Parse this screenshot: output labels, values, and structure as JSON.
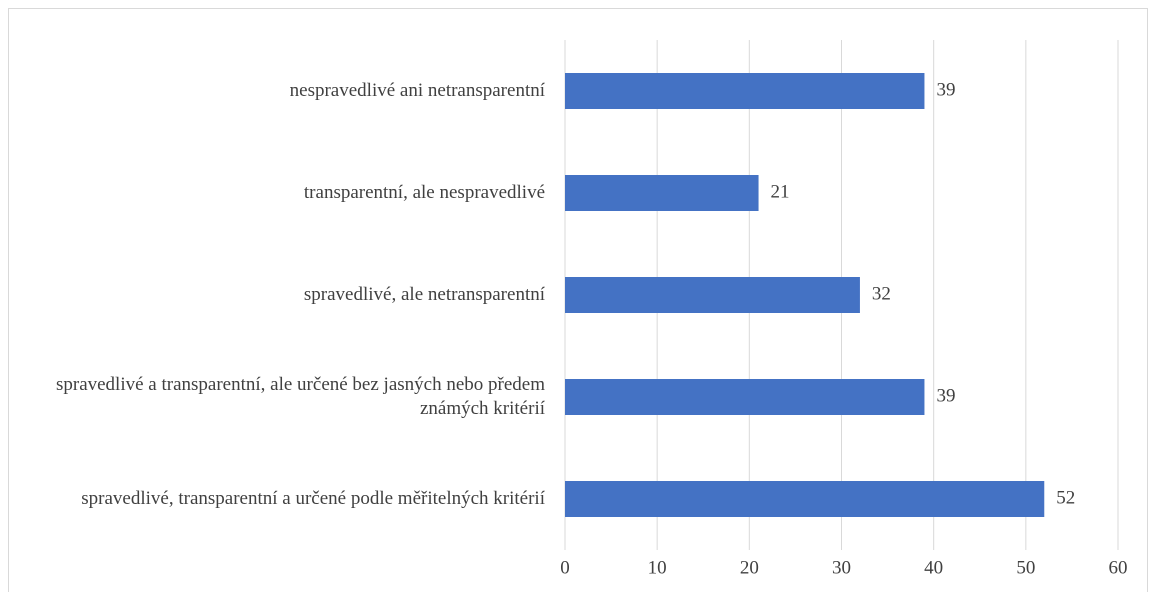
{
  "chart_data": {
    "type": "bar",
    "orientation": "horizontal",
    "categories": [
      "nespravedlivé ani netransparentní",
      "transparentní, ale nespravedlivé",
      "spravedlivé, ale netransparentní",
      "spravedlivé a transparentní, ale určené bez jasných nebo předem známých kritérií",
      "spravedlivé, transparentní a určené podle měřitelných kritérií"
    ],
    "values": [
      39,
      21,
      32,
      39,
      52
    ],
    "color": "#4472c4",
    "xlim": [
      0,
      60
    ],
    "xticks": [
      0,
      10,
      20,
      30,
      40,
      50,
      60
    ],
    "grid": true
  }
}
